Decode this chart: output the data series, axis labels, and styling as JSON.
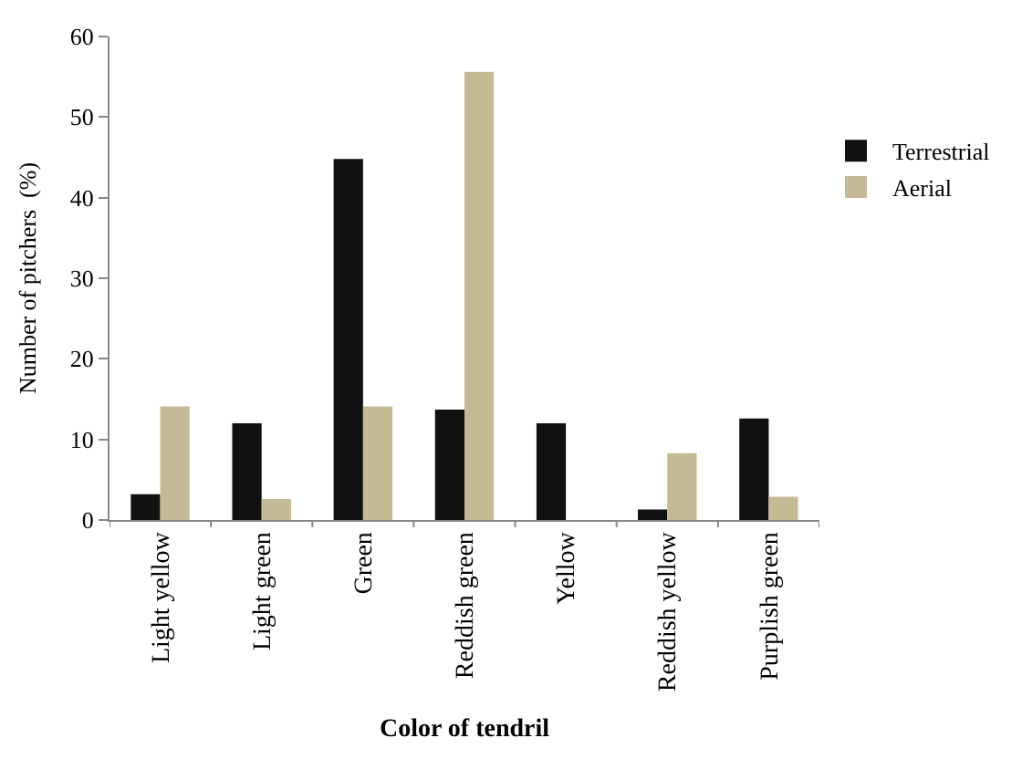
{
  "chart_data": {
    "type": "bar",
    "xlabel": "Color of tendril",
    "ylabel": "Number of pitchers  (%)",
    "categories": [
      "Light yellow",
      "Light green",
      "Green",
      "Reddish green",
      "Yellow",
      "Reddish yellow",
      "Purplish green"
    ],
    "series": [
      {
        "name": "Terrestrial",
        "color": "#111111",
        "values": [
          3.2,
          12.0,
          44.8,
          13.7,
          12.0,
          1.3,
          12.6
        ]
      },
      {
        "name": "Aerial",
        "color": "#c4bb96",
        "values": [
          14.1,
          2.6,
          14.1,
          55.6,
          0,
          8.3,
          2.9
        ]
      }
    ],
    "ylim": [
      0,
      60
    ],
    "yticks": [
      0,
      10,
      20,
      30,
      40,
      50,
      60
    ],
    "legend": "top right"
  }
}
